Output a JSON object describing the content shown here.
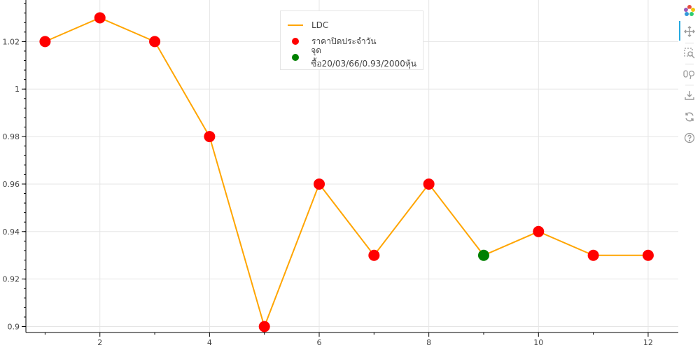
{
  "chart_data": {
    "type": "line",
    "title": "",
    "xlabel": "",
    "ylabel": "",
    "x": [
      1,
      2,
      3,
      4,
      5,
      6,
      7,
      8,
      9,
      10,
      11,
      12
    ],
    "xlim": [
      0.65,
      12.55
    ],
    "ylim": [
      0.8975,
      1.0375
    ],
    "x_ticks": [
      2,
      4,
      6,
      8,
      10,
      12
    ],
    "x_tick_labels": [
      "2",
      "4",
      "6",
      "8",
      "10",
      "12"
    ],
    "x_minor_ticks": [
      1,
      3,
      5,
      7,
      9,
      11
    ],
    "y_ticks": [
      0.9,
      0.92,
      0.94,
      0.96,
      0.98,
      1.0,
      1.02
    ],
    "y_tick_labels": [
      "0.9",
      "0.92",
      "0.94",
      "0.96",
      "0.98",
      "1",
      "1.02"
    ],
    "grid": true,
    "legend_position": "top-center",
    "series": [
      {
        "name": "LDC",
        "kind": "line",
        "color": "#FFA500",
        "values": [
          1.02,
          1.03,
          1.02,
          0.98,
          0.9,
          0.96,
          0.93,
          0.96,
          0.93,
          0.94,
          0.93,
          0.93
        ]
      },
      {
        "name": "ราคาปิดประจำวัน",
        "kind": "scatter",
        "color": "#FF0000",
        "x": [
          1,
          2,
          3,
          4,
          5,
          6,
          7,
          8,
          10,
          11,
          12
        ],
        "values": [
          1.02,
          1.03,
          1.02,
          0.98,
          0.9,
          0.96,
          0.93,
          0.96,
          0.94,
          0.93,
          0.93
        ]
      },
      {
        "name": "จุดซื้อ20/03/66/0.93/2000หุ้น",
        "kind": "scatter",
        "color": "#008000",
        "x": [
          9
        ],
        "values": [
          0.93
        ]
      }
    ]
  },
  "toolbar": {
    "tools": [
      {
        "name": "bokeh-logo-icon"
      },
      {
        "name": "pan-tool-icon"
      },
      {
        "name": "box-zoom-tool-icon"
      },
      {
        "name": "wheel-zoom-tool-icon"
      },
      {
        "name": "save-tool-icon"
      },
      {
        "name": "reset-tool-icon"
      },
      {
        "name": "help-tool-icon"
      }
    ]
  }
}
